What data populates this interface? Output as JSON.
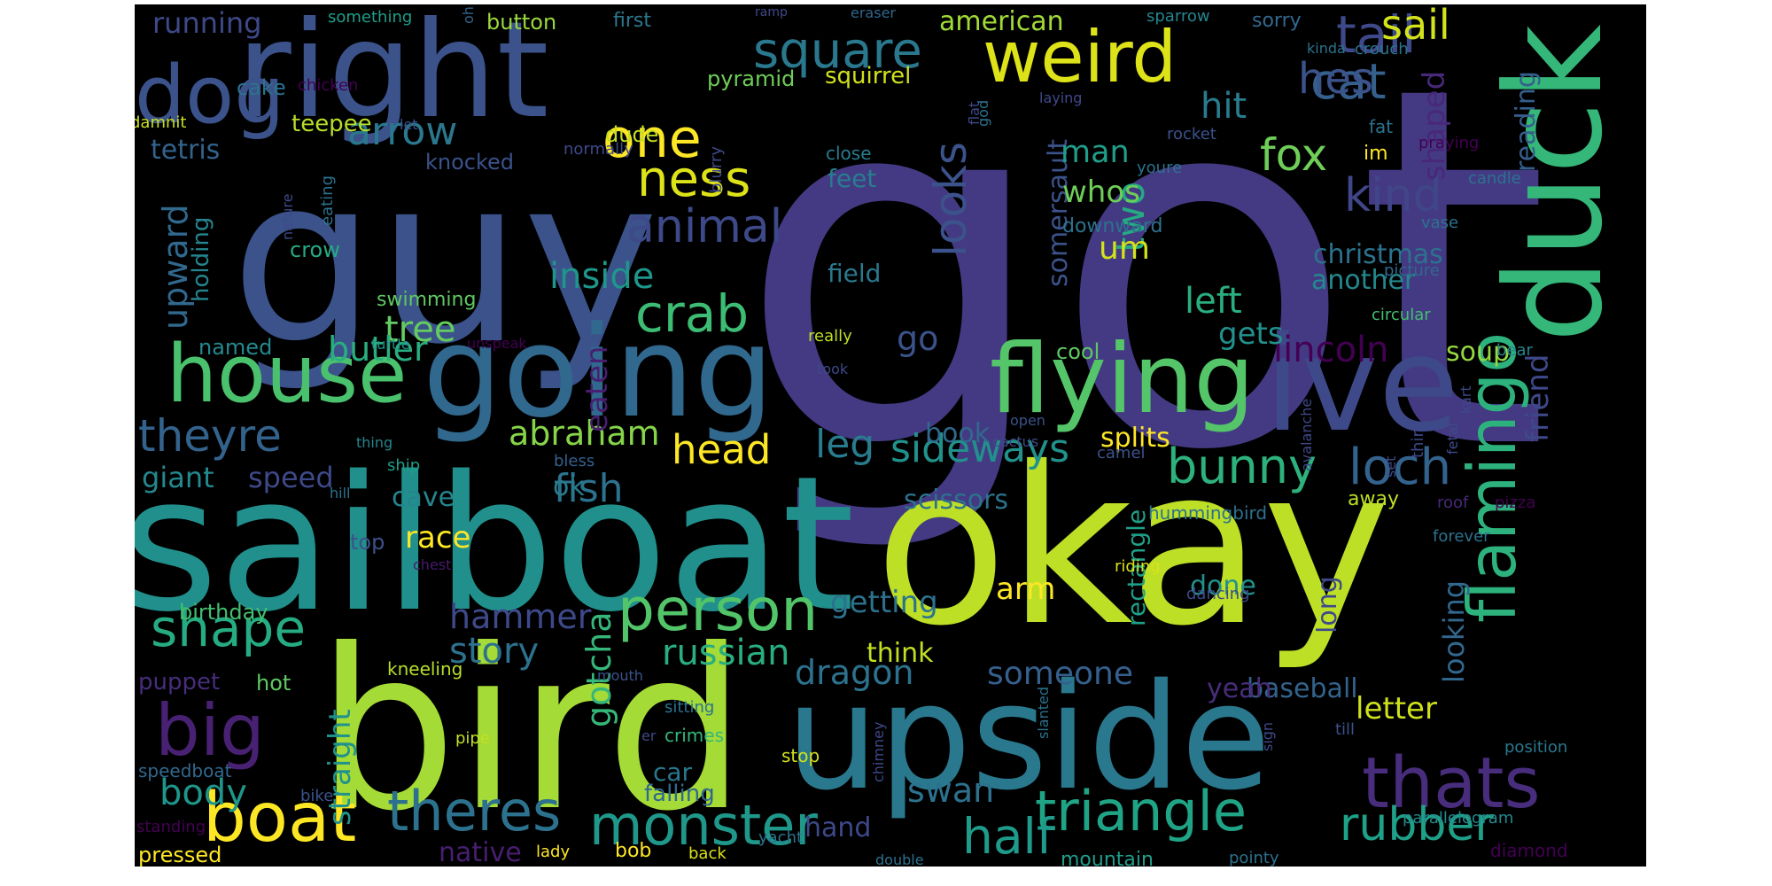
{
  "words": [
    {
      "text": "got",
      "color": "#443a83"
    },
    {
      "text": "guy",
      "color": "#3b528b"
    },
    {
      "text": "sailboat",
      "color": "#21908c"
    },
    {
      "text": "okay",
      "color": "#bddf26"
    },
    {
      "text": "bird",
      "color": "#a5db36"
    },
    {
      "text": "upside",
      "color": "#2a788e"
    },
    {
      "text": "right",
      "color": "#3b528b"
    },
    {
      "text": "going",
      "color": "#31688e"
    },
    {
      "text": "ive",
      "color": "#3e4989"
    },
    {
      "text": "duck",
      "color": "#35b779"
    },
    {
      "text": "flying",
      "color": "#54c568"
    },
    {
      "text": "weird",
      "color": "#dde318"
    },
    {
      "text": "dog",
      "color": "#3b528b"
    },
    {
      "text": "house",
      "color": "#4ac16d"
    },
    {
      "text": "big",
      "color": "#482173"
    },
    {
      "text": "boat",
      "color": "#fde725"
    },
    {
      "text": "flamingo",
      "color": "#2db27d"
    },
    {
      "text": "thats",
      "color": "#472d7b"
    },
    {
      "text": "person",
      "color": "#52c569"
    },
    {
      "text": "monster",
      "color": "#1f988b"
    },
    {
      "text": "triangle",
      "color": "#20a486"
    },
    {
      "text": "theres",
      "color": "#2c728e"
    },
    {
      "text": "shape",
      "color": "#25ac82"
    },
    {
      "text": "crab",
      "color": "#3dbc74"
    },
    {
      "text": "half",
      "color": "#1e9b8a"
    },
    {
      "text": "one",
      "color": "#fde725"
    },
    {
      "text": "ness",
      "color": "#dde318"
    },
    {
      "text": "square",
      "color": "#2a788e"
    },
    {
      "text": "tail",
      "color": "#3e4989"
    },
    {
      "text": "cat",
      "color": "#355f8d"
    },
    {
      "text": "hes",
      "color": "#3b528b"
    },
    {
      "text": "sail",
      "color": "#d2e21b"
    },
    {
      "text": "animal",
      "color": "#3e4989"
    },
    {
      "text": "looks",
      "color": "#3b528b"
    },
    {
      "text": "fox",
      "color": "#6ece58"
    },
    {
      "text": "kind",
      "color": "#404688"
    },
    {
      "text": "loch",
      "color": "#33638d"
    },
    {
      "text": "bunny",
      "color": "#2db27d"
    },
    {
      "text": "rubber",
      "color": "#1fa088"
    },
    {
      "text": "sideways",
      "color": "#21918c"
    },
    {
      "text": "head",
      "color": "#fde725"
    },
    {
      "text": "abraham",
      "color": "#86d549"
    },
    {
      "text": "theyre",
      "color": "#33638d"
    },
    {
      "text": "arrow",
      "color": "#2a788e"
    },
    {
      "text": "leg",
      "color": "#287c8e"
    },
    {
      "text": "fish",
      "color": "#2c728e"
    },
    {
      "text": "dragon",
      "color": "#2c728e"
    },
    {
      "text": "russian",
      "color": "#29af7f"
    },
    {
      "text": "lincoln",
      "color": "#440154"
    },
    {
      "text": "left",
      "color": "#29af7f"
    },
    {
      "text": "two",
      "color": "#25ab82"
    },
    {
      "text": "inside",
      "color": "#1f968b"
    },
    {
      "text": "tree",
      "color": "#63cb5f"
    },
    {
      "text": "butler",
      "color": "#29af7f"
    },
    {
      "text": "body",
      "color": "#1f968b"
    },
    {
      "text": "story",
      "color": "#2c728e"
    },
    {
      "text": "hammer",
      "color": "#3e4989"
    },
    {
      "text": "gotcha",
      "color": "#35b779"
    },
    {
      "text": "upward",
      "color": "#31688e"
    },
    {
      "text": "straight",
      "color": "#20928c"
    },
    {
      "text": "eaten",
      "color": "#481f70"
    },
    {
      "text": "shaped",
      "color": "#482878"
    },
    {
      "text": "friend",
      "color": "#3e4989"
    },
    {
      "text": "looking",
      "color": "#31688e"
    },
    {
      "text": "letter",
      "color": "#cde11d"
    },
    {
      "text": "swan",
      "color": "#2c728e"
    },
    {
      "text": "someone",
      "color": "#355f8d"
    },
    {
      "text": "getting",
      "color": "#2c728e"
    },
    {
      "text": "somersault",
      "color": "#3b528b"
    },
    {
      "text": "hit",
      "color": "#287c8e"
    },
    {
      "text": "man",
      "color": "#1f9e89"
    },
    {
      "text": "whos",
      "color": "#6ece58"
    },
    {
      "text": "um",
      "color": "#d2e21b"
    },
    {
      "text": "gets",
      "color": "#21918c"
    },
    {
      "text": "go",
      "color": "#3b528b"
    },
    {
      "text": "speed",
      "color": "#3e4989"
    },
    {
      "text": "giant",
      "color": "#23898e"
    },
    {
      "text": "cave",
      "color": "#25858e"
    },
    {
      "text": "race",
      "color": "#fde725"
    },
    {
      "text": "ok",
      "color": "#287c8e"
    },
    {
      "text": "scissors",
      "color": "#2c728e"
    },
    {
      "text": "splits",
      "color": "#fde725"
    },
    {
      "text": "book",
      "color": "#31688e"
    },
    {
      "text": "christmas",
      "color": "#2c728e"
    },
    {
      "text": "another",
      "color": "#23898e"
    },
    {
      "text": "reading",
      "color": "#355f8d"
    },
    {
      "text": "soup",
      "color": "#95d840"
    },
    {
      "text": "arm",
      "color": "#fde725"
    },
    {
      "text": "done",
      "color": "#21918c"
    },
    {
      "text": "long",
      "color": "#3e4989"
    },
    {
      "text": "think",
      "color": "#c2df23"
    },
    {
      "text": "baseball",
      "color": "#33638d"
    },
    {
      "text": "yeah",
      "color": "#472d7b"
    },
    {
      "text": "hand",
      "color": "#3e4989"
    },
    {
      "text": "native",
      "color": "#481f70"
    },
    {
      "text": "rectangle",
      "color": "#1fa088"
    },
    {
      "text": "running",
      "color": "#3e4989"
    },
    {
      "text": "american",
      "color": "#a0da39"
    },
    {
      "text": "button",
      "color": "#9bd93c"
    },
    {
      "text": "cake",
      "color": "#2c728e"
    },
    {
      "text": "teepee",
      "color": "#b8de29"
    },
    {
      "text": "pyramid",
      "color": "#6ece58"
    },
    {
      "text": "squirrel",
      "color": "#d0e11c"
    },
    {
      "text": "tetris",
      "color": "#33638d"
    },
    {
      "text": "knocked",
      "color": "#3b528b"
    },
    {
      "text": "dude",
      "color": "#c2df23"
    },
    {
      "text": "feet",
      "color": "#287c8e"
    },
    {
      "text": "holding",
      "color": "#25858e"
    },
    {
      "text": "crow",
      "color": "#25ab82"
    },
    {
      "text": "field",
      "color": "#2a788e"
    },
    {
      "text": "downward",
      "color": "#2c728e"
    },
    {
      "text": "swimming",
      "color": "#5ec962"
    },
    {
      "text": "named",
      "color": "#23898e"
    },
    {
      "text": "cool",
      "color": "#5ec962"
    },
    {
      "text": "birthday",
      "color": "#44bf70"
    },
    {
      "text": "puppet",
      "color": "#472d7b"
    },
    {
      "text": "hot",
      "color": "#5ec962"
    },
    {
      "text": "kneeling",
      "color": "#b8de29"
    },
    {
      "text": "top",
      "color": "#3b528b"
    },
    {
      "text": "car",
      "color": "#2a788e"
    },
    {
      "text": "falling",
      "color": "#31688e"
    },
    {
      "text": "pressed",
      "color": "#fde725"
    },
    {
      "text": "bob",
      "color": "#fde725"
    },
    {
      "text": "speedboat",
      "color": "#31688e"
    },
    {
      "text": "mountain",
      "color": "#1f9e89"
    },
    {
      "text": "diamond",
      "color": "#440154"
    },
    {
      "text": "parallelogram",
      "color": "#23898e"
    },
    {
      "text": "position",
      "color": "#2a788e"
    },
    {
      "text": "something",
      "color": "#1f9e89"
    },
    {
      "text": "oh",
      "color": "#33638d"
    },
    {
      "text": "first",
      "color": "#2a788e"
    },
    {
      "text": "ramp",
      "color": "#3e4989"
    },
    {
      "text": "eraser",
      "color": "#31688e"
    },
    {
      "text": "sparrow",
      "color": "#25858e"
    },
    {
      "text": "sorry",
      "color": "#31688e"
    },
    {
      "text": "kinda",
      "color": "#2c728e"
    },
    {
      "text": "crouch",
      "color": "#2c728e"
    },
    {
      "text": "chicken",
      "color": "#440154"
    },
    {
      "text": "damnit",
      "color": "#c8e020"
    },
    {
      "text": "let",
      "color": "#3b528b"
    },
    {
      "text": "normally",
      "color": "#3e4989"
    },
    {
      "text": "blurry",
      "color": "#3e4989"
    },
    {
      "text": "close",
      "color": "#287c8e"
    },
    {
      "text": "flat",
      "color": "#3e4989"
    },
    {
      "text": "god",
      "color": "#2c728e"
    },
    {
      "text": "laying",
      "color": "#3e4989"
    },
    {
      "text": "rocket",
      "color": "#3b528b"
    },
    {
      "text": "fat",
      "color": "#2c728e"
    },
    {
      "text": "im",
      "color": "#fde725"
    },
    {
      "text": "praying",
      "color": "#440154"
    },
    {
      "text": "candle",
      "color": "#2c728e"
    },
    {
      "text": "vase",
      "color": "#2c728e"
    },
    {
      "text": "picture",
      "color": "#31688e"
    },
    {
      "text": "circular",
      "color": "#44bf70"
    },
    {
      "text": "bear",
      "color": "#25858e"
    },
    {
      "text": "kart",
      "color": "#3e4989"
    },
    {
      "text": "eating",
      "color": "#2c728e"
    },
    {
      "text": "nature",
      "color": "#3e4989"
    },
    {
      "text": "youre",
      "color": "#2c728e"
    },
    {
      "text": "turtle",
      "color": "#21918c"
    },
    {
      "text": "unspeak",
      "color": "#440154"
    },
    {
      "text": "really",
      "color": "#bddf26"
    },
    {
      "text": "took",
      "color": "#3e4989"
    },
    {
      "text": "avalanche",
      "color": "#3e4989"
    },
    {
      "text": "thing",
      "color": "#25858e"
    },
    {
      "text": "open",
      "color": "#3b528b"
    },
    {
      "text": "cactus",
      "color": "#3e4989"
    },
    {
      "text": "ship",
      "color": "#1f9e89"
    },
    {
      "text": "bless",
      "color": "#355f8d"
    },
    {
      "text": "camel",
      "color": "#3b528b"
    },
    {
      "text": "hill",
      "color": "#2c728e"
    },
    {
      "text": "hummingbird",
      "color": "#2c728e"
    },
    {
      "text": "third",
      "color": "#3e4989"
    },
    {
      "text": "fetal",
      "color": "#3e4989"
    },
    {
      "text": "set",
      "color": "#3e4989"
    },
    {
      "text": "roof",
      "color": "#482878"
    },
    {
      "text": "pizza",
      "color": "#440154"
    },
    {
      "text": "forever",
      "color": "#2c728e"
    },
    {
      "text": "away",
      "color": "#bddf26"
    },
    {
      "text": "chest",
      "color": "#481a6c"
    },
    {
      "text": "riding",
      "color": "#d8e219"
    },
    {
      "text": "dancing",
      "color": "#3e4989"
    },
    {
      "text": "mouth",
      "color": "#3b528b"
    },
    {
      "text": "pipe",
      "color": "#c2df23"
    },
    {
      "text": "er",
      "color": "#3e4989"
    },
    {
      "text": "crimes",
      "color": "#35b779"
    },
    {
      "text": "stop",
      "color": "#d0e11c"
    },
    {
      "text": "chimney",
      "color": "#3e4989"
    },
    {
      "text": "slanted",
      "color": "#2c728e"
    },
    {
      "text": "sign",
      "color": "#3e4989"
    },
    {
      "text": "till",
      "color": "#3b528b"
    },
    {
      "text": "sitting",
      "color": "#2c728e"
    },
    {
      "text": "bike",
      "color": "#3b528b"
    },
    {
      "text": "standing",
      "color": "#440154"
    },
    {
      "text": "lady",
      "color": "#fde725"
    },
    {
      "text": "back",
      "color": "#d8e219"
    },
    {
      "text": "yacht",
      "color": "#2c728e"
    },
    {
      "text": "double",
      "color": "#2c728e"
    },
    {
      "text": "pointy",
      "color": "#2c728e"
    }
  ]
}
